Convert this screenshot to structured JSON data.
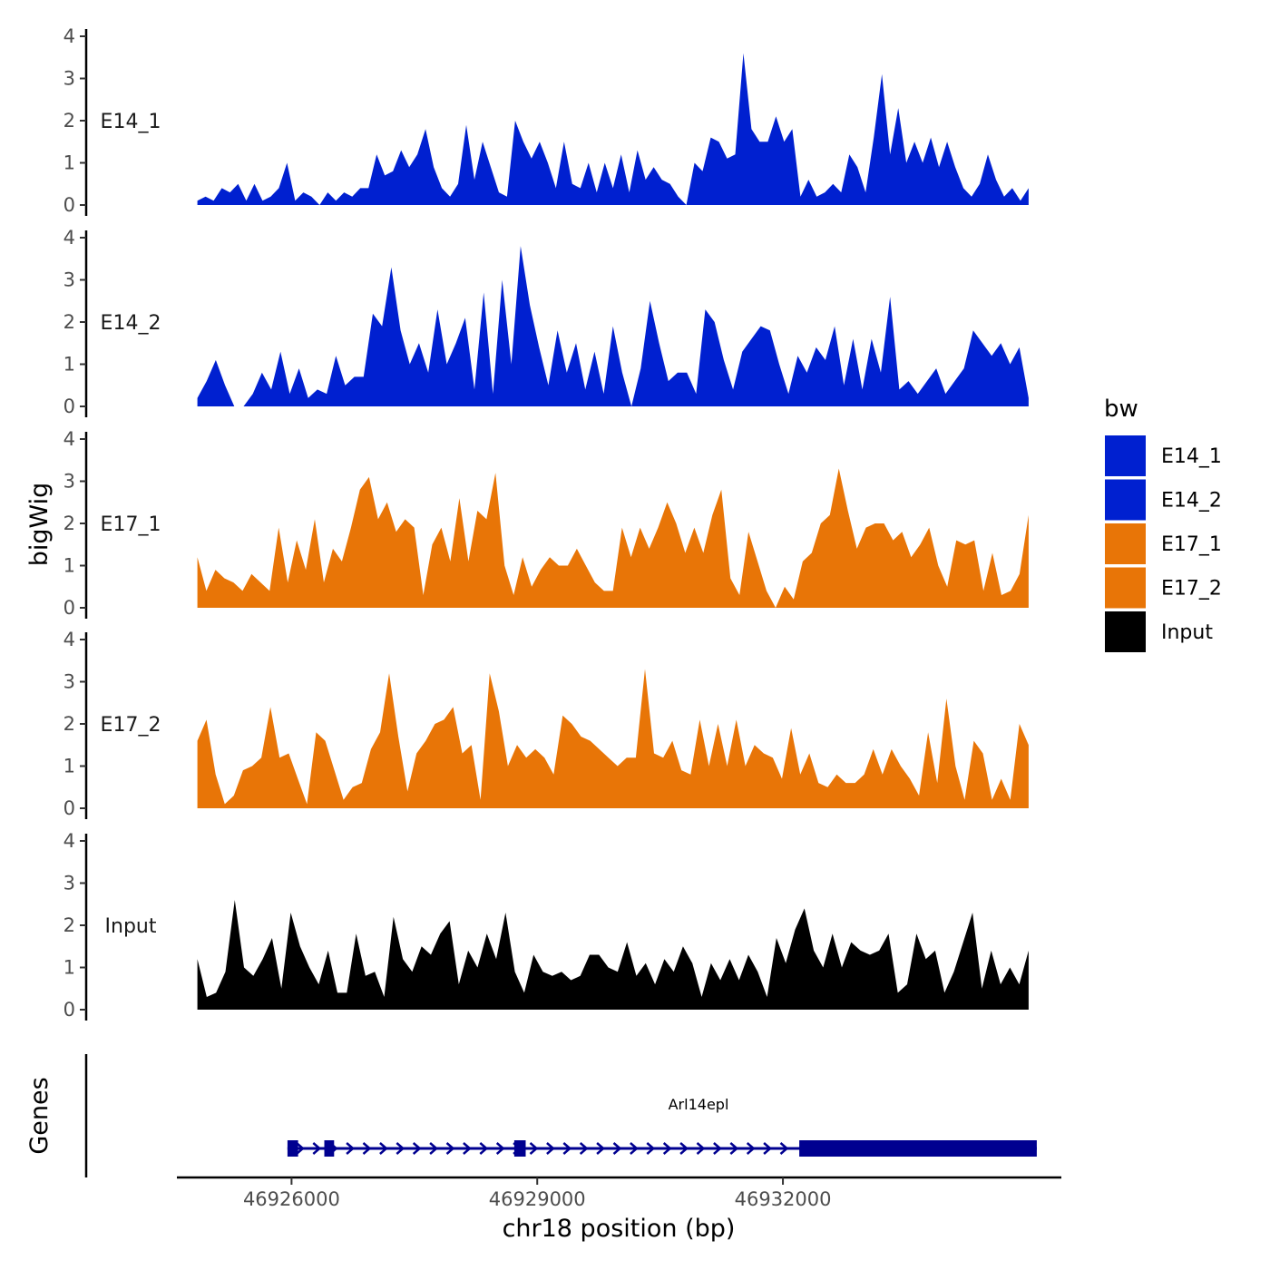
{
  "chart_data": {
    "type": "area",
    "ylabel": "bigWig",
    "xlabel": "chr18 position (bp)",
    "ylim": [
      0,
      4
    ],
    "y_ticks": [
      "0",
      "1",
      "2",
      "3",
      "4"
    ],
    "x_range": [
      46924600,
      46935400
    ],
    "x_ticks": [
      {
        "value": 46926000,
        "label": "46926000"
      },
      {
        "value": 46929000,
        "label": "46929000"
      },
      {
        "value": 46932000,
        "label": "46932000"
      }
    ],
    "data_start": 46924850,
    "data_end": 46935000,
    "tracks": [
      {
        "name": "E14_1",
        "label": "E14_1",
        "color": "#0020d0",
        "values": [
          0.1,
          0.2,
          0.1,
          0.4,
          0.3,
          0.5,
          0.1,
          0.5,
          0.1,
          0.2,
          0.4,
          1.0,
          0.1,
          0.3,
          0.2,
          0.0,
          0.3,
          0.1,
          0.3,
          0.2,
          0.4,
          0.4,
          1.2,
          0.7,
          0.8,
          1.3,
          0.9,
          1.2,
          1.8,
          0.9,
          0.4,
          0.2,
          0.5,
          1.9,
          0.6,
          1.5,
          0.9,
          0.3,
          0.2,
          2.0,
          1.5,
          1.1,
          1.5,
          1.0,
          0.4,
          1.5,
          0.5,
          0.4,
          1.0,
          0.3,
          1.0,
          0.4,
          1.2,
          0.3,
          1.3,
          0.6,
          0.9,
          0.6,
          0.5,
          0.2,
          0.0,
          1.0,
          0.8,
          1.6,
          1.5,
          1.1,
          1.2,
          3.6,
          1.8,
          1.5,
          1.5,
          2.1,
          1.5,
          1.8,
          0.2,
          0.6,
          0.2,
          0.3,
          0.5,
          0.3,
          1.2,
          0.9,
          0.3,
          1.6,
          3.1,
          1.2,
          2.3,
          1.0,
          1.5,
          1.0,
          1.6,
          0.9,
          1.5,
          0.9,
          0.4,
          0.2,
          0.5,
          1.2,
          0.6,
          0.2,
          0.4,
          0.1,
          0.4
        ]
      },
      {
        "name": "E14_2",
        "label": "E14_2",
        "color": "#0020d0",
        "values": [
          0.2,
          0.6,
          1.1,
          0.5,
          0.0,
          0.0,
          0.3,
          0.8,
          0.4,
          1.3,
          0.3,
          0.9,
          0.2,
          0.4,
          0.3,
          1.2,
          0.5,
          0.7,
          0.7,
          2.2,
          1.9,
          3.3,
          1.8,
          1.0,
          1.5,
          0.8,
          2.3,
          1.0,
          1.5,
          2.1,
          0.4,
          2.7,
          0.3,
          3.0,
          1.0,
          3.8,
          2.4,
          1.4,
          0.5,
          1.8,
          0.8,
          1.5,
          0.4,
          1.3,
          0.3,
          1.9,
          0.8,
          0.0,
          0.9,
          2.5,
          1.5,
          0.6,
          0.8,
          0.8,
          0.3,
          2.3,
          2.0,
          1.1,
          0.4,
          1.3,
          1.6,
          1.9,
          1.8,
          1.0,
          0.3,
          1.2,
          0.8,
          1.4,
          1.1,
          1.9,
          0.5,
          1.6,
          0.4,
          1.6,
          0.8,
          2.6,
          0.4,
          0.6,
          0.3,
          0.6,
          0.9,
          0.3,
          0.6,
          0.9,
          1.8,
          1.5,
          1.2,
          1.5,
          1.0,
          1.4,
          0.2
        ]
      },
      {
        "name": "E17_1",
        "label": "E17_1",
        "color": "#e87507",
        "values": [
          1.2,
          0.4,
          0.9,
          0.7,
          0.6,
          0.4,
          0.8,
          0.6,
          0.4,
          1.9,
          0.6,
          1.6,
          0.9,
          2.1,
          0.6,
          1.4,
          1.1,
          1.9,
          2.8,
          3.1,
          2.1,
          2.5,
          1.8,
          2.1,
          1.9,
          0.3,
          1.5,
          1.9,
          1.1,
          2.6,
          1.1,
          2.3,
          2.1,
          3.2,
          1.0,
          0.3,
          1.2,
          0.5,
          0.9,
          1.2,
          1.0,
          1.0,
          1.4,
          1.0,
          0.6,
          0.4,
          0.4,
          1.9,
          1.2,
          1.9,
          1.4,
          1.9,
          2.5,
          2.0,
          1.3,
          1.9,
          1.3,
          2.2,
          2.8,
          0.7,
          0.3,
          1.8,
          1.1,
          0.4,
          0.0,
          0.5,
          0.2,
          1.1,
          1.3,
          2.0,
          2.2,
          3.3,
          2.3,
          1.4,
          1.9,
          2.0,
          2.0,
          1.6,
          1.8,
          1.2,
          1.5,
          1.9,
          1.0,
          0.5,
          1.6,
          1.5,
          1.6,
          0.4,
          1.3,
          0.3,
          0.4,
          0.8,
          2.2
        ]
      },
      {
        "name": "E17_2",
        "label": "E17_2",
        "color": "#e87507",
        "values": [
          1.6,
          2.1,
          0.8,
          0.1,
          0.3,
          0.9,
          1.0,
          1.2,
          2.4,
          1.2,
          1.3,
          0.7,
          0.1,
          1.8,
          1.6,
          0.9,
          0.2,
          0.5,
          0.6,
          1.4,
          1.8,
          3.2,
          1.7,
          0.4,
          1.3,
          1.6,
          2.0,
          2.1,
          2.4,
          1.3,
          1.5,
          0.2,
          3.2,
          2.3,
          1.0,
          1.5,
          1.2,
          1.4,
          1.2,
          0.8,
          2.2,
          2.0,
          1.7,
          1.6,
          1.4,
          1.2,
          1.0,
          1.2,
          1.2,
          3.3,
          1.3,
          1.2,
          1.6,
          0.9,
          0.8,
          2.1,
          1.0,
          2.0,
          1.0,
          2.1,
          1.0,
          1.5,
          1.3,
          1.2,
          0.7,
          1.9,
          0.8,
          1.3,
          0.6,
          0.5,
          0.8,
          0.6,
          0.6,
          0.8,
          1.4,
          0.8,
          1.4,
          1.0,
          0.7,
          0.3,
          1.8,
          0.6,
          2.6,
          1.0,
          0.2,
          1.6,
          1.3,
          0.2,
          0.7,
          0.2,
          2.0,
          1.5
        ]
      },
      {
        "name": "Input",
        "label": "Input",
        "color": "#000000",
        "values": [
          1.2,
          0.3,
          0.4,
          0.9,
          2.6,
          1.0,
          0.8,
          1.2,
          1.7,
          0.5,
          2.3,
          1.5,
          1.0,
          0.6,
          1.4,
          0.4,
          0.4,
          1.8,
          0.8,
          0.9,
          0.3,
          2.2,
          1.2,
          0.9,
          1.5,
          1.3,
          1.8,
          2.1,
          0.6,
          1.4,
          1.0,
          1.8,
          1.2,
          2.3,
          0.9,
          0.4,
          1.3,
          0.9,
          0.8,
          0.9,
          0.7,
          0.8,
          1.3,
          1.3,
          1.0,
          0.9,
          1.6,
          0.8,
          1.1,
          0.6,
          1.2,
          0.9,
          1.5,
          1.1,
          0.3,
          1.1,
          0.7,
          1.2,
          0.7,
          1.3,
          0.9,
          0.3,
          1.7,
          1.1,
          1.9,
          2.4,
          1.4,
          1.0,
          1.8,
          1.0,
          1.6,
          1.4,
          1.3,
          1.4,
          1.8,
          0.4,
          0.6,
          1.8,
          1.2,
          1.4,
          0.4,
          0.9,
          1.6,
          2.3,
          0.5,
          1.4,
          0.6,
          1.0,
          0.6,
          1.4
        ]
      }
    ],
    "legend": {
      "title": "bw",
      "entries": [
        {
          "label": "E14_1",
          "color": "#0020d0"
        },
        {
          "label": "E14_2",
          "color": "#0020d0"
        },
        {
          "label": "E17_1",
          "color": "#e87507"
        },
        {
          "label": "E17_2",
          "color": "#e87507"
        },
        {
          "label": "Input",
          "color": "#000000"
        }
      ]
    },
    "genes": {
      "panel_title": "Genes",
      "name": "Arl14epl",
      "color": "#000090",
      "start": 46925950,
      "end": 46935100,
      "exons": [
        [
          46925950,
          46926080
        ],
        [
          46926400,
          46926520
        ],
        [
          46928720,
          46928860
        ],
        [
          46932200,
          46935100
        ]
      ]
    }
  }
}
